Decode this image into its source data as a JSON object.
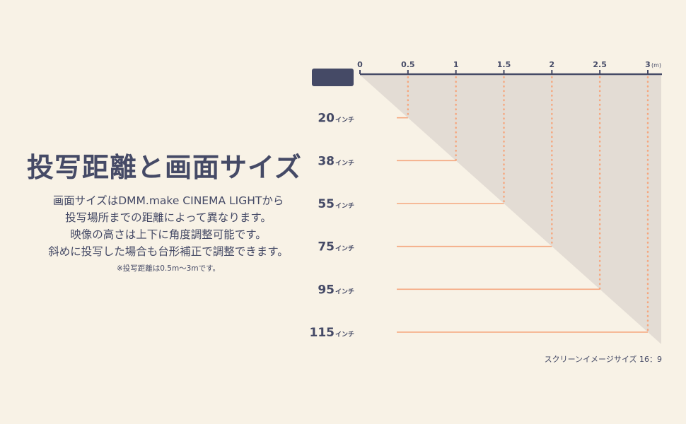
{
  "title": "投写距離と画面サイズ",
  "description": [
    "画面サイズはDMM.make CINEMA LIGHTから",
    "投写場所までの距離によって異なります。",
    "映像の高さは上下に角度調整可能です。",
    "斜めに投写した場合も台形補正で調整できます。"
  ],
  "note": "※投写距離は0.5m～3mです。",
  "axis": {
    "ticks": [
      "0",
      "0.5",
      "1",
      "1.5",
      "2",
      "2.5",
      "3"
    ],
    "unit": "(m)"
  },
  "inch_unit": "インチ",
  "sizes": [
    {
      "distance": 0.5,
      "inches": "20"
    },
    {
      "distance": 1,
      "inches": "38"
    },
    {
      "distance": 1.5,
      "inches": "55"
    },
    {
      "distance": 2,
      "inches": "75"
    },
    {
      "distance": 2.5,
      "inches": "95"
    },
    {
      "distance": 3,
      "inches": "115"
    }
  ],
  "footer": "スクリーンイメージサイズ 16：9",
  "colors": {
    "background": "#f8f2e6",
    "text": "#454a66",
    "beam": "#e3dcd4",
    "accent": "#f5a77f",
    "projector": "#454a66"
  }
}
